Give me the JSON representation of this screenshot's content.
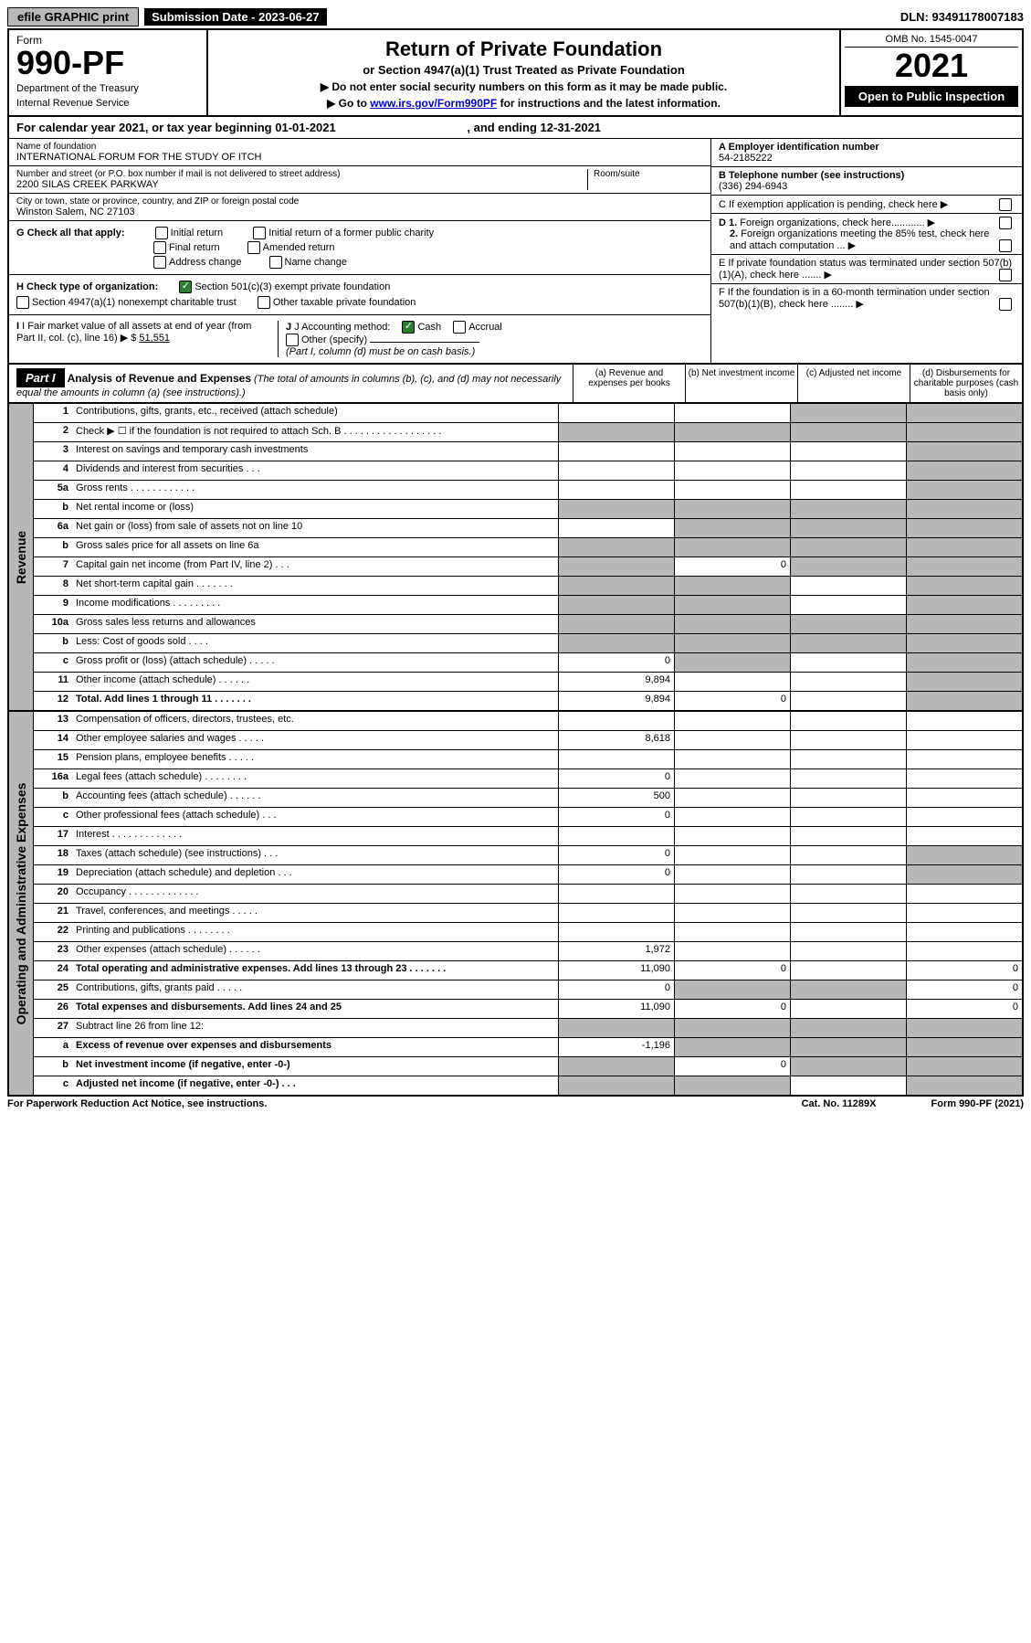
{
  "top": {
    "efile": "efile GRAPHIC print",
    "submission_label": "Submission Date - 2023-06-27",
    "dln": "DLN: 93491178007183"
  },
  "header": {
    "form_label": "Form",
    "form_number": "990-PF",
    "dept1": "Department of the Treasury",
    "dept2": "Internal Revenue Service",
    "title": "Return of Private Foundation",
    "subtitle": "or Section 4947(a)(1) Trust Treated as Private Foundation",
    "note1": "▶ Do not enter social security numbers on this form as it may be made public.",
    "note2_prefix": "▶ Go to ",
    "note2_link": "www.irs.gov/Form990PF",
    "note2_suffix": " for instructions and the latest information.",
    "omb": "OMB No. 1545-0047",
    "year": "2021",
    "open": "Open to Public Inspection"
  },
  "calendar": {
    "text_prefix": "For calendar year 2021, or tax year beginning ",
    "begin": "01-01-2021",
    "mid": " , and ending ",
    "end": "12-31-2021"
  },
  "info": {
    "name_label": "Name of foundation",
    "name": "INTERNATIONAL FORUM FOR THE STUDY OF ITCH",
    "addr_label": "Number and street (or P.O. box number if mail is not delivered to street address)",
    "addr": "2200 SILAS CREEK PARKWAY",
    "room_label": "Room/suite",
    "city_label": "City or town, state or province, country, and ZIP or foreign postal code",
    "city": "Winston Salem, NC  27103",
    "ein_label": "A Employer identification number",
    "ein": "54-2185222",
    "phone_label": "B Telephone number (see instructions)",
    "phone": "(336) 294-6943",
    "c_label": "C If exemption application is pending, check here",
    "d1": "D 1. Foreign organizations, check here............",
    "d2": "2. Foreign organizations meeting the 85% test, check here and attach computation ...",
    "e_label": "E  If private foundation status was terminated under section 507(b)(1)(A), check here .......",
    "f_label": "F  If the foundation is in a 60-month termination under section 507(b)(1)(B), check here ........"
  },
  "checks": {
    "g_label": "G Check all that apply:",
    "g_opts": [
      "Initial return",
      "Initial return of a former public charity",
      "Final return",
      "Amended return",
      "Address change",
      "Name change"
    ],
    "h_label": "H Check type of organization:",
    "h1": "Section 501(c)(3) exempt private foundation",
    "h2": "Section 4947(a)(1) nonexempt charitable trust",
    "h3": "Other taxable private foundation",
    "i_label": "I Fair market value of all assets at end of year (from Part II, col. (c), line 16)",
    "i_value": "51,551",
    "j_label": "J Accounting method:",
    "j1": "Cash",
    "j2": "Accrual",
    "j3": "Other (specify)",
    "j_note": "(Part I, column (d) must be on cash basis.)"
  },
  "part1": {
    "label": "Part I",
    "title": "Analysis of Revenue and Expenses",
    "desc": " (The total of amounts in columns (b), (c), and (d) may not necessarily equal the amounts in column (a) (see instructions).)",
    "col_a": "(a)   Revenue and expenses per books",
    "col_b": "(b)  Net investment income",
    "col_c": "(c)  Adjusted net income",
    "col_d": "(d)  Disbursements for charitable purposes (cash basis only)"
  },
  "revenue_label": "Revenue",
  "expenses_label": "Operating and Administrative Expenses",
  "rows": [
    {
      "n": "1",
      "t": "Contributions, gifts, grants, etc., received (attach schedule)",
      "a": "",
      "b": "",
      "c": "gray",
      "d": "gray"
    },
    {
      "n": "2",
      "t": "Check ▶ ☐ if the foundation is not required to attach Sch. B  . . . . . . . . . . . . . . . . . .",
      "a": "gray",
      "b": "gray",
      "c": "gray",
      "d": "gray"
    },
    {
      "n": "3",
      "t": "Interest on savings and temporary cash investments",
      "a": "",
      "b": "",
      "c": "",
      "d": "gray"
    },
    {
      "n": "4",
      "t": "Dividends and interest from securities   . . .",
      "a": "",
      "b": "",
      "c": "",
      "d": "gray"
    },
    {
      "n": "5a",
      "t": "Gross rents   . . . . . . . . . . . .",
      "a": "",
      "b": "",
      "c": "",
      "d": "gray"
    },
    {
      "n": "b",
      "t": "Net rental income or (loss)  ",
      "a": "gray",
      "b": "gray",
      "c": "gray",
      "d": "gray"
    },
    {
      "n": "6a",
      "t": "Net gain or (loss) from sale of assets not on line 10",
      "a": "",
      "b": "gray",
      "c": "gray",
      "d": "gray"
    },
    {
      "n": "b",
      "t": "Gross sales price for all assets on line 6a ",
      "a": "gray",
      "b": "gray",
      "c": "gray",
      "d": "gray"
    },
    {
      "n": "7",
      "t": "Capital gain net income (from Part IV, line 2)  . . .",
      "a": "gray",
      "b": "",
      "bval": "0",
      "c": "gray",
      "d": "gray"
    },
    {
      "n": "8",
      "t": "Net short-term capital gain  . . . . . . .",
      "a": "gray",
      "b": "gray",
      "c": "",
      "d": "gray"
    },
    {
      "n": "9",
      "t": "Income modifications  . . . . . . . . .",
      "a": "gray",
      "b": "gray",
      "c": "",
      "d": "gray"
    },
    {
      "n": "10a",
      "t": "Gross sales less returns and allowances  ",
      "a": "gray",
      "b": "gray",
      "c": "gray",
      "d": "gray"
    },
    {
      "n": "b",
      "t": "Less: Cost of goods sold   . . . .  ",
      "a": "gray",
      "b": "gray",
      "c": "gray",
      "d": "gray"
    },
    {
      "n": "c",
      "t": "Gross profit or (loss) (attach schedule)   . . . . .",
      "a": "",
      "aval": "0",
      "b": "gray",
      "c": "",
      "d": "gray"
    },
    {
      "n": "11",
      "t": "Other income (attach schedule)   . . . . . .",
      "a": "",
      "aval": "9,894",
      "b": "",
      "c": "",
      "d": "gray"
    },
    {
      "n": "12",
      "t": "Total. Add lines 1 through 11  . . . . . . .",
      "bold": true,
      "a": "",
      "aval": "9,894",
      "b": "",
      "bval": "0",
      "c": "",
      "d": "gray"
    }
  ],
  "exp_rows": [
    {
      "n": "13",
      "t": "Compensation of officers, directors, trustees, etc.",
      "a": "",
      "b": "",
      "c": "",
      "d": ""
    },
    {
      "n": "14",
      "t": "Other employee salaries and wages  . . . . .",
      "a": "",
      "aval": "8,618",
      "b": "",
      "c": "",
      "d": ""
    },
    {
      "n": "15",
      "t": "Pension plans, employee benefits  . . . . .",
      "a": "",
      "b": "",
      "c": "",
      "d": ""
    },
    {
      "n": "16a",
      "t": "Legal fees (attach schedule) . . . . . . . .",
      "a": "",
      "aval": "0",
      "b": "",
      "c": "",
      "d": ""
    },
    {
      "n": "b",
      "t": "Accounting fees (attach schedule)  . . . . . .",
      "a": "",
      "aval": "500",
      "b": "",
      "c": "",
      "d": ""
    },
    {
      "n": "c",
      "t": "Other professional fees (attach schedule)   . . .",
      "a": "",
      "aval": "0",
      "b": "",
      "c": "",
      "d": ""
    },
    {
      "n": "17",
      "t": "Interest  . . . . . . . . . . . . .",
      "a": "",
      "b": "",
      "c": "",
      "d": ""
    },
    {
      "n": "18",
      "t": "Taxes (attach schedule) (see instructions)   . . .",
      "a": "",
      "aval": "0",
      "b": "",
      "c": "",
      "d": "gray"
    },
    {
      "n": "19",
      "t": "Depreciation (attach schedule) and depletion  . . .",
      "a": "",
      "aval": "0",
      "b": "",
      "c": "",
      "d": "gray"
    },
    {
      "n": "20",
      "t": "Occupancy . . . . . . . . . . . . .",
      "a": "",
      "b": "",
      "c": "",
      "d": ""
    },
    {
      "n": "21",
      "t": "Travel, conferences, and meetings  . . . . .",
      "a": "",
      "b": "",
      "c": "",
      "d": ""
    },
    {
      "n": "22",
      "t": "Printing and publications  . . . . . . . .",
      "a": "",
      "b": "",
      "c": "",
      "d": ""
    },
    {
      "n": "23",
      "t": "Other expenses (attach schedule)  . . . . . .",
      "a": "",
      "aval": "1,972",
      "b": "",
      "c": "",
      "d": ""
    },
    {
      "n": "24",
      "t": "Total operating and administrative expenses. Add lines 13 through 23   . . . . . . .",
      "bold": true,
      "a": "",
      "aval": "11,090",
      "b": "",
      "bval": "0",
      "c": "",
      "d": "",
      "dval": "0"
    },
    {
      "n": "25",
      "t": "Contributions, gifts, grants paid   . . . . .",
      "a": "",
      "aval": "0",
      "b": "gray",
      "c": "gray",
      "d": "",
      "dval": "0"
    },
    {
      "n": "26",
      "t": "Total expenses and disbursements. Add lines 24 and 25",
      "bold": true,
      "a": "",
      "aval": "11,090",
      "b": "",
      "bval": "0",
      "c": "",
      "d": "",
      "dval": "0"
    },
    {
      "n": "27",
      "t": "Subtract line 26 from line 12:",
      "a": "gray",
      "b": "gray",
      "c": "gray",
      "d": "gray"
    },
    {
      "n": "a",
      "t": "Excess of revenue over expenses and disbursements",
      "bold": true,
      "a": "",
      "aval": "-1,196",
      "b": "gray",
      "c": "gray",
      "d": "gray"
    },
    {
      "n": "b",
      "t": "Net investment income (if negative, enter -0-)",
      "bold": true,
      "a": "gray",
      "b": "",
      "bval": "0",
      "c": "gray",
      "d": "gray"
    },
    {
      "n": "c",
      "t": "Adjusted net income (if negative, enter -0-)  . . .",
      "bold": true,
      "a": "gray",
      "b": "gray",
      "c": "",
      "d": "gray"
    }
  ],
  "footer": {
    "left": "For Paperwork Reduction Act Notice, see instructions.",
    "mid": "Cat. No. 11289X",
    "right": "Form 990-PF (2021)"
  }
}
